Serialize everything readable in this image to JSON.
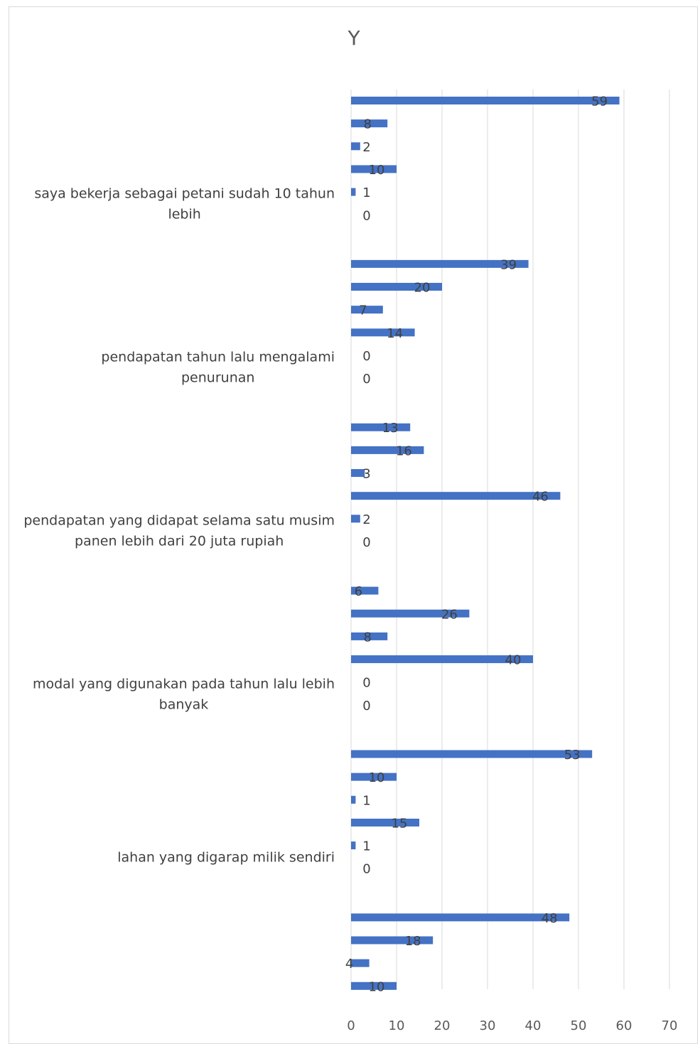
{
  "chart_data": {
    "type": "bar",
    "orientation": "horizontal",
    "title": "Y",
    "xlim": [
      0,
      70
    ],
    "x_ticks": [
      0,
      10,
      20,
      30,
      40,
      50,
      60,
      70
    ],
    "grid": true,
    "bar_color": "#4472c4",
    "categories": [
      {
        "label": "saya bekerja sebagai petani sudah 10 tahun lebih",
        "label_lines": [
          "saya bekerja sebagai petani sudah 10 tahun",
          "lebih"
        ],
        "values": [
          59,
          8,
          2,
          10,
          1,
          0
        ]
      },
      {
        "label": "pendapatan tahun lalu mengalami penurunan",
        "label_lines": [
          "pendapatan tahun lalu mengalami",
          "penurunan"
        ],
        "values": [
          39,
          20,
          7,
          14,
          0,
          0
        ]
      },
      {
        "label": "pendapatan yang didapat selama satu musim panen lebih dari 20 juta rupiah",
        "label_lines": [
          "pendapatan yang didapat selama satu musim",
          "panen lebih dari 20 juta rupiah"
        ],
        "values": [
          13,
          16,
          3,
          46,
          2,
          0
        ]
      },
      {
        "label": "modal yang digunakan pada tahun lalu lebih banyak",
        "label_lines": [
          "modal yang digunakan pada tahun lalu lebih",
          "banyak"
        ],
        "values": [
          6,
          26,
          8,
          40,
          0,
          0
        ]
      },
      {
        "label": "lahan yang digarap milik sendiri",
        "label_lines": [
          "lahan yang digarap milik sendiri"
        ],
        "values": [
          53,
          10,
          1,
          15,
          1,
          0
        ]
      },
      {
        "label": "",
        "label_lines": [],
        "values": [
          48,
          18,
          4,
          10
        ]
      }
    ]
  }
}
